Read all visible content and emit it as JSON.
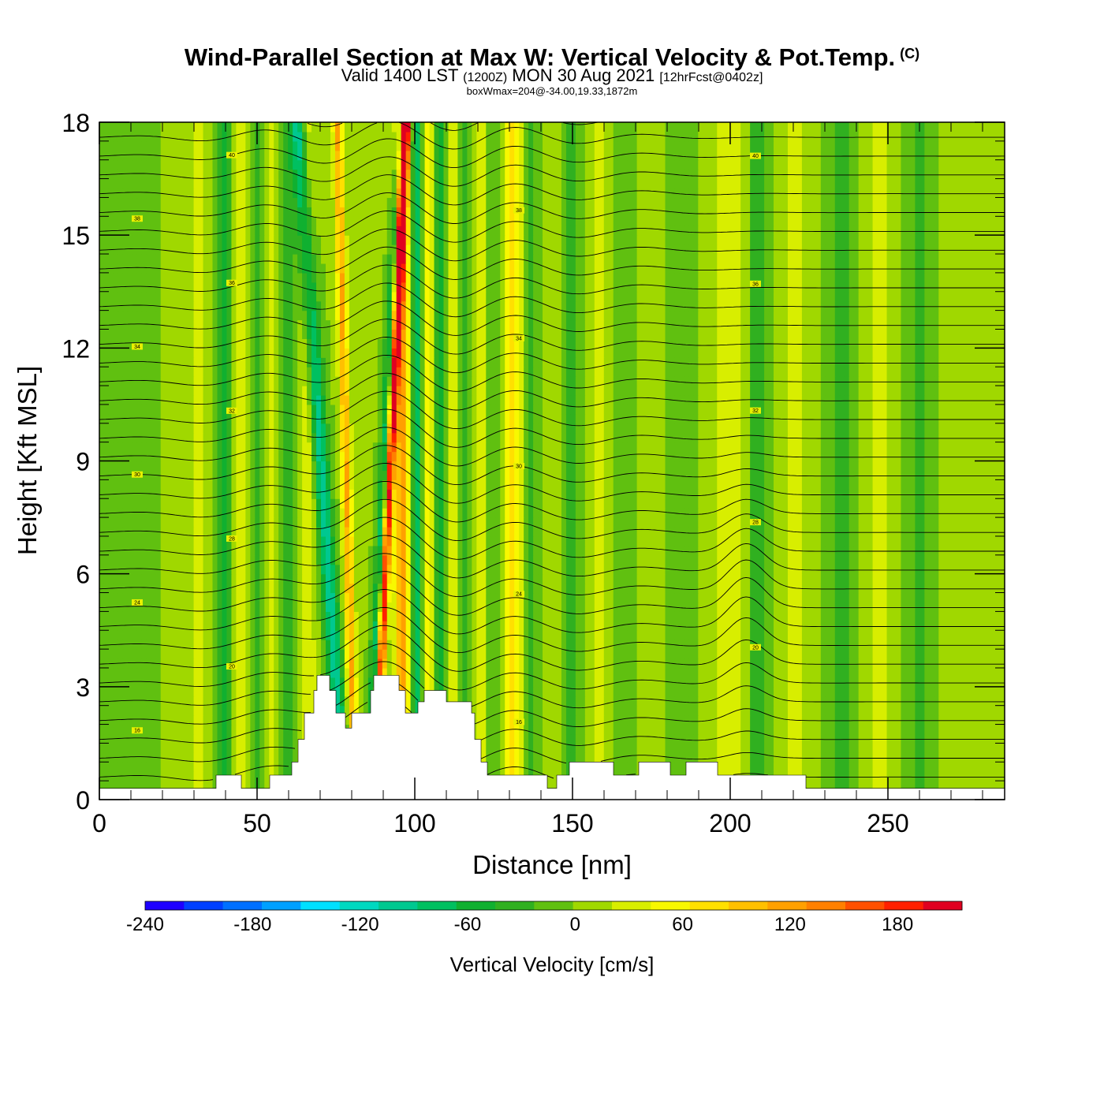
{
  "header": {
    "title": "Wind-Parallel Section at Max W: Vertical Velocity & Pot.Temp.",
    "title_mark": "(C)",
    "valid_prefix": "Valid 1400 LST",
    "valid_utc": "(1200Z)",
    "valid_date": "MON 30 Aug 2021",
    "forecast_info": "[12hrFcst@0402z]",
    "note": "boxWmax=204@-34.00,19.33,1872m"
  },
  "chart_data": {
    "type": "heatmap",
    "xlabel": "Distance [nm]",
    "ylabel": "Height [Kft MSL]",
    "xlim": [
      0,
      287
    ],
    "ylim": [
      0,
      18
    ],
    "x_ticks": [
      0,
      50,
      100,
      150,
      200,
      250
    ],
    "y_ticks": [
      0,
      3,
      6,
      9,
      12,
      15,
      18
    ],
    "colorbar": {
      "title": "Vertical Velocity [cm/s]",
      "range": [
        -240,
        216
      ],
      "tick_values": [
        -240,
        -180,
        -120,
        -60,
        0,
        60,
        120,
        180
      ],
      "colors": [
        "#1e00ff",
        "#0040ff",
        "#0070ff",
        "#00a0ff",
        "#00e0ff",
        "#00d8c0",
        "#00c890",
        "#00c060",
        "#10b030",
        "#30b020",
        "#60c010",
        "#a0d800",
        "#d8ee00",
        "#f8f800",
        "#ffe000",
        "#ffc000",
        "#ffa000",
        "#ff8000",
        "#ff5000",
        "#ff2000",
        "#e00020"
      ]
    },
    "w_bands": [
      {
        "x": 4,
        "w": 14,
        "v": -22
      },
      {
        "x": 20,
        "w": 4,
        "v": 6
      },
      {
        "x": 31,
        "w": 3,
        "v": 30
      },
      {
        "x": 40,
        "w": 2,
        "v": -60
      },
      {
        "x": 45,
        "w": 2.5,
        "v": 45
      },
      {
        "x": 50,
        "w": 2,
        "v": -40
      },
      {
        "x": 54,
        "w": 2,
        "v": 30
      },
      {
        "x": 60,
        "w": 2.5,
        "v": -30
      },
      {
        "x": 66,
        "w": 2.5,
        "v": 40
      },
      {
        "x": 75,
        "w": 2.5,
        "v": -100,
        "s": -0.8
      },
      {
        "x": 80,
        "w": 1.6,
        "v": 110,
        "s": -0.3
      },
      {
        "x": 87,
        "w": 1.5,
        "v": -80,
        "s": 0.55
      },
      {
        "x": 89,
        "w": 1.3,
        "v": 200,
        "s": 0.55
      },
      {
        "x": 96,
        "w": 2.5,
        "v": 120
      },
      {
        "x": 101,
        "w": 2,
        "v": -90
      },
      {
        "x": 104,
        "w": 2,
        "v": 70
      },
      {
        "x": 108,
        "w": 2,
        "v": -50
      },
      {
        "x": 112,
        "w": 2,
        "v": 30
      },
      {
        "x": 116,
        "w": 2,
        "v": -35
      },
      {
        "x": 121,
        "w": 2.5,
        "v": 30
      },
      {
        "x": 125,
        "w": 2.5,
        "v": -25
      },
      {
        "x": 131,
        "w": 3,
        "v": 70
      },
      {
        "x": 137,
        "w": 3,
        "v": -25
      },
      {
        "x": 144,
        "w": 3,
        "v": 18
      },
      {
        "x": 150,
        "w": 3.5,
        "v": -30
      },
      {
        "x": 159,
        "w": 4,
        "v": 25
      },
      {
        "x": 166,
        "w": 3.5,
        "v": -25
      },
      {
        "x": 174,
        "w": 4,
        "v": 18
      },
      {
        "x": 184,
        "w": 4,
        "v": -20
      },
      {
        "x": 200,
        "w": 5,
        "v": 38
      },
      {
        "x": 209,
        "w": 3,
        "v": -45
      },
      {
        "x": 220,
        "w": 4,
        "v": 30
      },
      {
        "x": 235,
        "w": 4,
        "v": -30
      },
      {
        "x": 247,
        "w": 5,
        "v": 25
      },
      {
        "x": 260,
        "w": 4,
        "v": -30
      },
      {
        "x": 273,
        "w": 5,
        "v": 20
      }
    ],
    "terrain": [
      [
        0,
        0.3
      ],
      [
        37,
        0.3
      ],
      [
        37,
        0.65
      ],
      [
        45,
        0.65
      ],
      [
        45,
        0.3
      ],
      [
        54,
        0.3
      ],
      [
        54,
        0.65
      ],
      [
        61,
        0.65
      ],
      [
        61,
        1.0
      ],
      [
        63,
        1.0
      ],
      [
        63,
        1.6
      ],
      [
        65,
        1.6
      ],
      [
        65,
        2.3
      ],
      [
        68,
        2.3
      ],
      [
        68,
        2.9
      ],
      [
        69,
        2.9
      ],
      [
        69,
        3.3
      ],
      [
        73,
        3.3
      ],
      [
        73,
        2.9
      ],
      [
        75,
        2.9
      ],
      [
        75,
        2.3
      ],
      [
        78,
        2.3
      ],
      [
        78,
        1.9
      ],
      [
        80,
        1.9
      ],
      [
        80,
        2.3
      ],
      [
        86,
        2.3
      ],
      [
        86,
        2.9
      ],
      [
        87,
        2.9
      ],
      [
        87,
        3.3
      ],
      [
        95,
        3.3
      ],
      [
        95,
        2.9
      ],
      [
        97,
        2.9
      ],
      [
        97,
        2.3
      ],
      [
        101,
        2.3
      ],
      [
        101,
        2.6
      ],
      [
        103,
        2.6
      ],
      [
        103,
        2.9
      ],
      [
        110,
        2.9
      ],
      [
        110,
        2.6
      ],
      [
        118,
        2.6
      ],
      [
        118,
        2.3
      ],
      [
        119,
        2.3
      ],
      [
        119,
        1.6
      ],
      [
        121,
        1.6
      ],
      [
        121,
        1.0
      ],
      [
        123,
        1.0
      ],
      [
        123,
        0.65
      ],
      [
        142,
        0.65
      ],
      [
        142,
        0.3
      ],
      [
        145,
        0.3
      ],
      [
        145,
        0.65
      ],
      [
        149,
        0.65
      ],
      [
        149,
        1.0
      ],
      [
        163,
        1.0
      ],
      [
        163,
        0.65
      ],
      [
        171,
        0.65
      ],
      [
        171,
        1.0
      ],
      [
        181,
        1.0
      ],
      [
        181,
        0.65
      ],
      [
        186,
        0.65
      ],
      [
        186,
        1.0
      ],
      [
        196,
        1.0
      ],
      [
        196,
        0.65
      ],
      [
        224,
        0.65
      ],
      [
        224,
        0.3
      ],
      [
        287,
        0.3
      ]
    ],
    "theta_levels": [
      16,
      20,
      24,
      28,
      30,
      32,
      34,
      36,
      38,
      40
    ]
  }
}
